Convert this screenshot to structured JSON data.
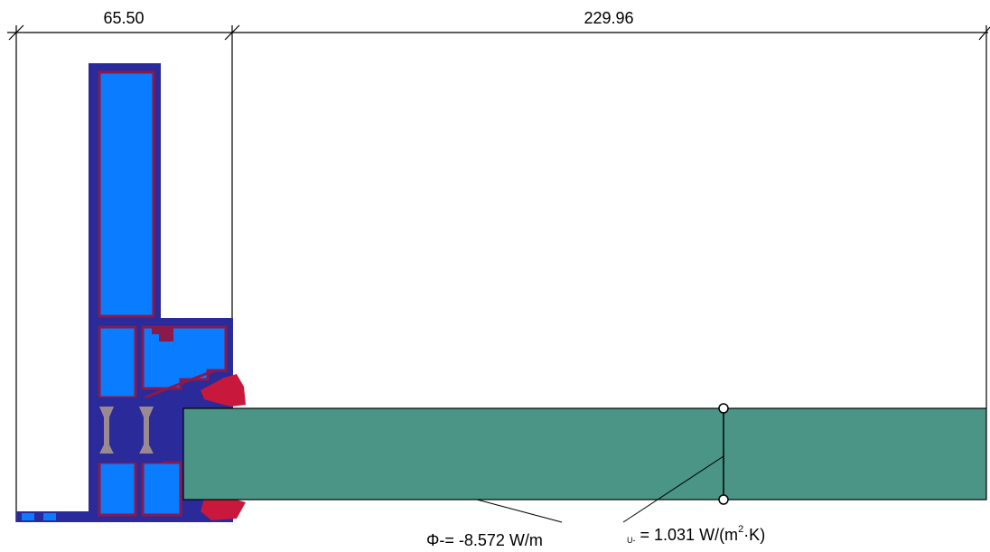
{
  "dimensions": {
    "left_width": "65.50",
    "right_width": "229.96"
  },
  "results": {
    "heat_flow_symbol": "Φ-",
    "heat_flow_text": "= -8.572 W/m",
    "u_symbol": "U-",
    "u_text_a": "= 1.031 W/(m",
    "u_exponent": "2",
    "u_text_b": "·K)"
  },
  "colors": {
    "frame_fill": "#0a7cff",
    "frame_outline": "#8b1a4a",
    "frame_dark": "#2a2a9a",
    "gasket": "#c8183c",
    "glazing": "#4a9585",
    "insulating_bar": "#9a8a90"
  }
}
